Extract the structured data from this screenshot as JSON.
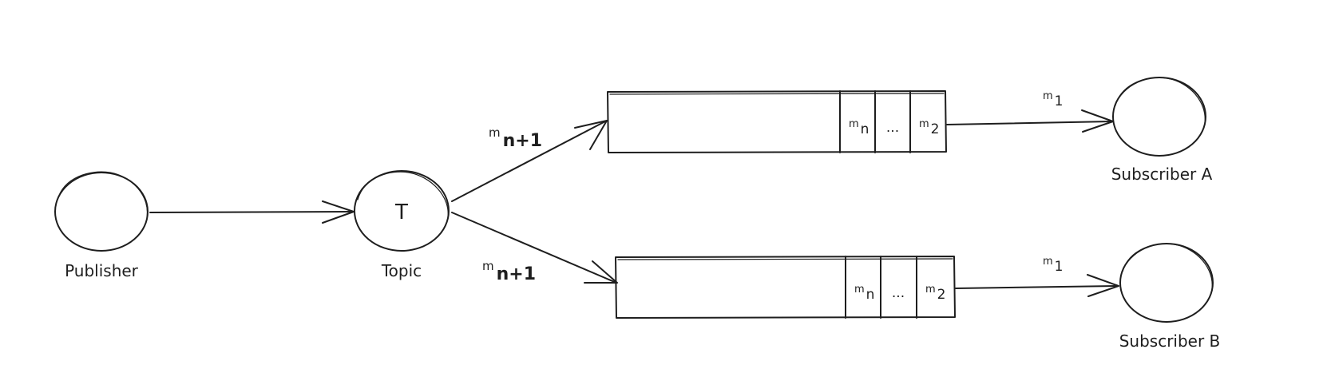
{
  "nodes": {
    "publisher": {
      "label": "Publisher"
    },
    "topic": {
      "label": "Topic",
      "symbol": "T"
    },
    "subscriber_a": {
      "label": "Subscriber A"
    },
    "subscriber_b": {
      "label": "Subscriber B"
    }
  },
  "edges": {
    "topic_to_queue_a": {
      "prefix": "m",
      "index": "n+1"
    },
    "topic_to_queue_b": {
      "prefix": "m",
      "index": "n+1"
    },
    "queue_a_to_subscriber_a": {
      "prefix": "m",
      "index": "1"
    },
    "queue_b_to_subscriber_b": {
      "prefix": "m",
      "index": "1"
    }
  },
  "queues": {
    "a": {
      "cells": [
        {
          "prefix": "m",
          "index": "n"
        },
        {
          "ellipsis": "..."
        },
        {
          "prefix": "m",
          "index": "2"
        }
      ]
    },
    "b": {
      "cells": [
        {
          "prefix": "m",
          "index": "n"
        },
        {
          "ellipsis": "..."
        },
        {
          "prefix": "m",
          "index": "2"
        }
      ]
    }
  },
  "colors": {
    "stroke": "#1e1e1e",
    "background": "#ffffff"
  }
}
